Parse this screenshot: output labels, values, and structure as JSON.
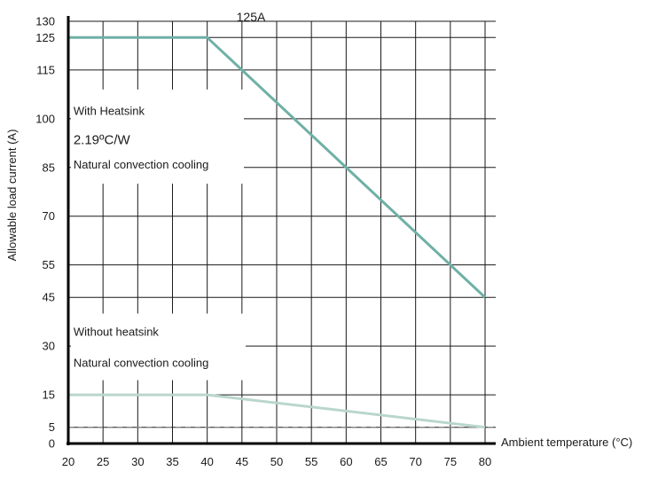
{
  "chart_data": {
    "type": "line",
    "title": "125A",
    "xlabel": "Ambient temperature (°C)",
    "ylabel": "Allowable load current (A)",
    "xlim": [
      20,
      80
    ],
    "ylim": [
      0,
      130
    ],
    "x_ticks": [
      20,
      25,
      30,
      35,
      40,
      45,
      50,
      55,
      60,
      65,
      70,
      75,
      80
    ],
    "y_ticks": [
      0,
      5,
      15,
      30,
      45,
      55,
      70,
      85,
      100,
      115,
      125,
      130
    ],
    "grid": true,
    "series": [
      {
        "color": "#6fb0a6",
        "x": [
          20,
          40,
          80
        ],
        "y": [
          125,
          125,
          45
        ]
      },
      {
        "color": "#b9d6cd",
        "x": [
          20,
          40,
          80
        ],
        "y": [
          15,
          15,
          5
        ]
      }
    ],
    "reference_line": {
      "y": 5,
      "style": "dashed",
      "color": "#888888"
    },
    "annotations": [
      {
        "text": "With Heatsink",
        "x": 21,
        "y": 102.5,
        "size": "normal"
      },
      {
        "text": "2.19ºC/W",
        "x": 21,
        "y": 93.5,
        "size": "large"
      },
      {
        "text": "Natural convection cooling",
        "x": 21,
        "y": 86,
        "size": "normal"
      },
      {
        "text": "Without heatsink",
        "x": 21,
        "y": 34.5,
        "size": "normal"
      },
      {
        "text": "Natural convection cooling",
        "x": 21,
        "y": 25,
        "size": "normal"
      }
    ]
  }
}
